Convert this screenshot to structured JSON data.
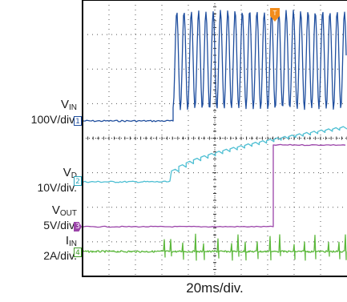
{
  "chart_data": {
    "type": "line",
    "title": "",
    "timebase": "20ms/div.",
    "grid": true,
    "x_divisions": 10,
    "y_divisions": 8,
    "trigger_marker": "T",
    "channels": [
      {
        "id": "1",
        "name": "V",
        "sub": "IN",
        "scale": "100V/div.",
        "color": "#1f4e9e",
        "marker": "1",
        "marker_style": "box",
        "behavior": "flat until ~2.3 div, then switching oscillation of ~3.5 div peak-to-peak"
      },
      {
        "id": "2",
        "name": "V",
        "sub": "D",
        "scale": "10V/div.",
        "color": "#4ebfd3",
        "marker": "2",
        "marker_style": "box",
        "behavior": "flat until ~2.3 div, then stepwise ramp of ~2 div"
      },
      {
        "id": "3",
        "name": "V",
        "sub": "OUT",
        "scale": "5V/div.",
        "color": "#9b44a9",
        "marker": "3",
        "marker_style": "flag",
        "behavior": "low until ~5.0 div, then steps up ~3.8 div"
      },
      {
        "id": "4",
        "name": "I",
        "sub": "IN",
        "scale": "2A/div.",
        "color": "#5cb83c",
        "marker": "4",
        "marker_style": "box",
        "behavior": "near zero with periodic spikes after ~2.0 div"
      }
    ]
  }
}
